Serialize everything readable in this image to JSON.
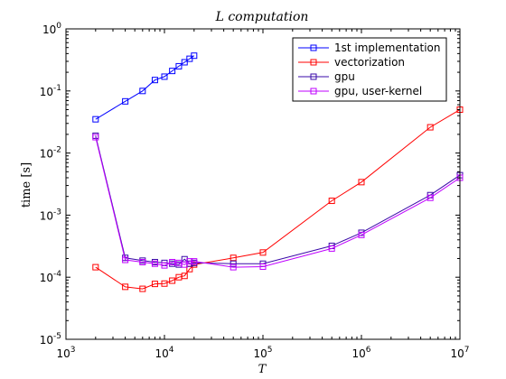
{
  "chart_data": {
    "type": "line",
    "title": "L computation",
    "xlabel": "T",
    "ylabel": "time [s]",
    "xscale": "log",
    "yscale": "log",
    "xlim": [
      1000,
      10000000
    ],
    "ylim": [
      1e-05,
      1
    ],
    "grid": false,
    "legend_position": "top-right",
    "x_ticks": [
      {
        "base": "10",
        "exp": "3"
      },
      {
        "base": "10",
        "exp": "4"
      },
      {
        "base": "10",
        "exp": "5"
      },
      {
        "base": "10",
        "exp": "6"
      },
      {
        "base": "10",
        "exp": "7"
      }
    ],
    "y_ticks": [
      {
        "base": "10",
        "exp": "-5"
      },
      {
        "base": "10",
        "exp": "-4"
      },
      {
        "base": "10",
        "exp": "-3"
      },
      {
        "base": "10",
        "exp": "-2"
      },
      {
        "base": "10",
        "exp": "-1"
      },
      {
        "base": "10",
        "exp": "0"
      }
    ],
    "series": [
      {
        "name": "1st implementation",
        "color": "#0000ff",
        "x": [
          2000,
          4000,
          6000,
          8000,
          10000,
          12000,
          14000,
          16000,
          18000,
          20000
        ],
        "y": [
          0.035,
          0.068,
          0.1,
          0.15,
          0.17,
          0.21,
          0.25,
          0.29,
          0.33,
          0.37
        ]
      },
      {
        "name": "vectorization",
        "color": "#ff0000",
        "x": [
          2000,
          4000,
          6000,
          8000,
          10000,
          12000,
          14000,
          16000,
          18000,
          20000,
          50000,
          100000,
          500000,
          1000000,
          5000000,
          10000000
        ],
        "y": [
          0.000145,
          7e-05,
          6.5e-05,
          7.8e-05,
          7.9e-05,
          8.8e-05,
          0.0001,
          0.000105,
          0.000135,
          0.00016,
          0.000205,
          0.00025,
          0.0017,
          0.0034,
          0.026,
          0.05
        ]
      },
      {
        "name": "gpu",
        "color": "#3a0aa8",
        "x": [
          2000,
          4000,
          6000,
          8000,
          10000,
          12000,
          14000,
          16000,
          18000,
          20000,
          50000,
          100000,
          500000,
          1000000,
          5000000,
          10000000
        ],
        "y": [
          0.019,
          0.000205,
          0.000185,
          0.000175,
          0.00017,
          0.000165,
          0.00016,
          0.000195,
          0.000165,
          0.00017,
          0.000165,
          0.000165,
          0.00032,
          0.00052,
          0.0021,
          0.0044
        ]
      },
      {
        "name": "gpu, user-kernel",
        "color": "#bf00ff",
        "x": [
          2000,
          4000,
          6000,
          8000,
          10000,
          12000,
          14000,
          16000,
          18000,
          20000,
          50000,
          100000,
          500000,
          1000000,
          5000000,
          10000000
        ],
        "y": [
          0.018,
          0.00019,
          0.000175,
          0.000165,
          0.000155,
          0.000175,
          0.00017,
          0.00016,
          0.00018,
          0.00018,
          0.000145,
          0.000148,
          0.00029,
          0.00048,
          0.0019,
          0.004
        ]
      }
    ]
  }
}
